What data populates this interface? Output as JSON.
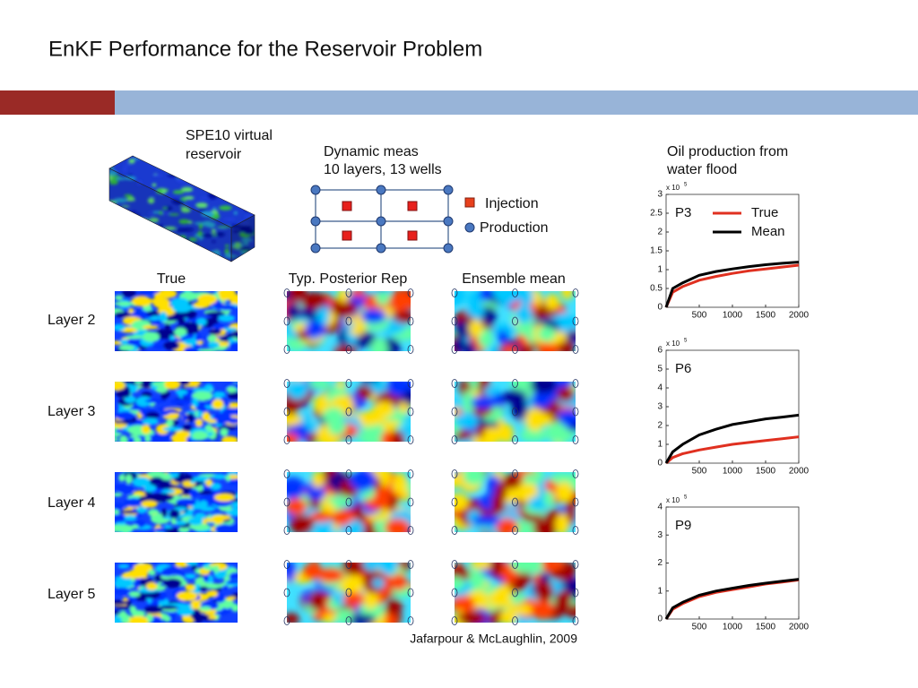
{
  "title": "EnKF Performance for the Reservoir Problem",
  "reservoir_label": [
    "SPE10 virtual",
    "reservoir"
  ],
  "dynamic_label": [
    "Dynamic meas",
    "10 layers, 13 wells"
  ],
  "well_legend": {
    "injection": "Injection",
    "production": "Production"
  },
  "columns": [
    "True",
    "Typ. Posterior Rep",
    "Ensemble mean"
  ],
  "layers": [
    "Layer 2",
    "Layer 3",
    "Layer 4",
    "Layer 5"
  ],
  "oil_label": [
    "Oil production from",
    "water flood"
  ],
  "citation": "Jafarpour & McLaughlin, 2009",
  "chart_data": [
    {
      "type": "line",
      "title": "P3",
      "scale_label": "x 10",
      "scale_exponent": "5",
      "legend": true,
      "x": [
        0,
        100,
        250,
        500,
        750,
        1000,
        1250,
        1500,
        1750,
        2000
      ],
      "xlim": [
        0,
        2000
      ],
      "xticks": [
        500,
        1000,
        1500,
        2000
      ],
      "ylim": [
        0,
        3
      ],
      "yticks": [
        0,
        0.5,
        1,
        1.5,
        2,
        2.5,
        3
      ],
      "series": [
        {
          "name": "True",
          "color": "#e03020",
          "values": [
            0,
            0.4,
            0.55,
            0.72,
            0.82,
            0.9,
            0.97,
            1.02,
            1.07,
            1.12
          ]
        },
        {
          "name": "Mean",
          "color": "#000000",
          "values": [
            0,
            0.5,
            0.65,
            0.85,
            0.95,
            1.02,
            1.08,
            1.13,
            1.17,
            1.2
          ]
        }
      ]
    },
    {
      "type": "line",
      "title": "P6",
      "scale_label": "x 10",
      "scale_exponent": "5",
      "legend": false,
      "x": [
        0,
        100,
        250,
        500,
        750,
        1000,
        1250,
        1500,
        1750,
        2000
      ],
      "xlim": [
        0,
        2000
      ],
      "xticks": [
        500,
        1000,
        1500,
        2000
      ],
      "ylim": [
        0,
        6
      ],
      "yticks": [
        0,
        1,
        2,
        3,
        4,
        5,
        6
      ],
      "series": [
        {
          "name": "True",
          "color": "#e03020",
          "values": [
            0,
            0.3,
            0.5,
            0.7,
            0.85,
            1.0,
            1.1,
            1.2,
            1.3,
            1.4
          ]
        },
        {
          "name": "Mean",
          "color": "#000000",
          "values": [
            0,
            0.6,
            1.0,
            1.5,
            1.8,
            2.05,
            2.2,
            2.35,
            2.45,
            2.55
          ]
        }
      ]
    },
    {
      "type": "line",
      "title": "P9",
      "scale_label": "x 10",
      "scale_exponent": "5",
      "legend": false,
      "x": [
        0,
        100,
        250,
        500,
        750,
        1000,
        1250,
        1500,
        1750,
        2000
      ],
      "xlim": [
        0,
        2000
      ],
      "xticks": [
        500,
        1000,
        1500,
        2000
      ],
      "ylim": [
        0,
        4
      ],
      "yticks": [
        0,
        1,
        2,
        3,
        4
      ],
      "series": [
        {
          "name": "True",
          "color": "#e03020",
          "values": [
            0,
            0.35,
            0.55,
            0.8,
            0.95,
            1.05,
            1.15,
            1.25,
            1.32,
            1.4
          ]
        },
        {
          "name": "Mean",
          "color": "#000000",
          "values": [
            0,
            0.4,
            0.6,
            0.85,
            1.0,
            1.1,
            1.2,
            1.28,
            1.35,
            1.42
          ]
        }
      ]
    }
  ]
}
